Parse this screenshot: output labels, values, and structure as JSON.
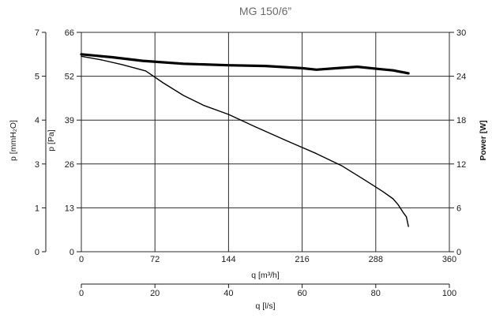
{
  "chart_data": {
    "type": "line",
    "title": "MG 150/6”",
    "x_primary": {
      "label": "q [m³/h]",
      "range": [
        0,
        360
      ],
      "ticks": [
        "0",
        "72",
        "144",
        "216",
        "288",
        "360"
      ]
    },
    "x_secondary": {
      "label": "q [l/s]",
      "range": [
        0,
        100
      ],
      "ticks": [
        "0",
        "20",
        "40",
        "60",
        "80",
        "100"
      ]
    },
    "y_outer": {
      "label": "p [mmH₂O]",
      "ticks": [
        "0",
        "1",
        "3",
        "4",
        "5",
        "7"
      ]
    },
    "y_left": {
      "label": "p [Pa]",
      "range": [
        0,
        66
      ],
      "ticks": [
        "0",
        "13",
        "26",
        "39",
        "52",
        "66"
      ]
    },
    "y_right": {
      "label": "Power [W]",
      "range": [
        0,
        30
      ],
      "ticks": [
        "0",
        "6",
        "12",
        "18",
        "24",
        "30"
      ]
    },
    "grid": true,
    "series": [
      {
        "axis": "left",
        "color": "#000000",
        "x": [
          0,
          20,
          40,
          63,
          80,
          100,
          120,
          144,
          170,
          200,
          230,
          255,
          275,
          295,
          305,
          310,
          315,
          318,
          320
        ],
        "y": [
          58.8,
          57.7,
          56.3,
          54.4,
          50.8,
          47.0,
          44.0,
          41.3,
          37.6,
          33.5,
          29.5,
          25.8,
          22.0,
          18.1,
          15.9,
          14.1,
          11.7,
          10.5,
          7.6
        ]
      },
      {
        "axis": "right",
        "color": "#000000",
        "x": [
          0,
          30,
          60,
          100,
          144,
          180,
          216,
          230,
          250,
          270,
          290,
          305,
          320
        ],
        "y": [
          27.0,
          26.6,
          26.1,
          25.7,
          25.5,
          25.4,
          25.1,
          24.9,
          25.1,
          25.3,
          25.0,
          24.8,
          24.4
        ]
      }
    ]
  }
}
